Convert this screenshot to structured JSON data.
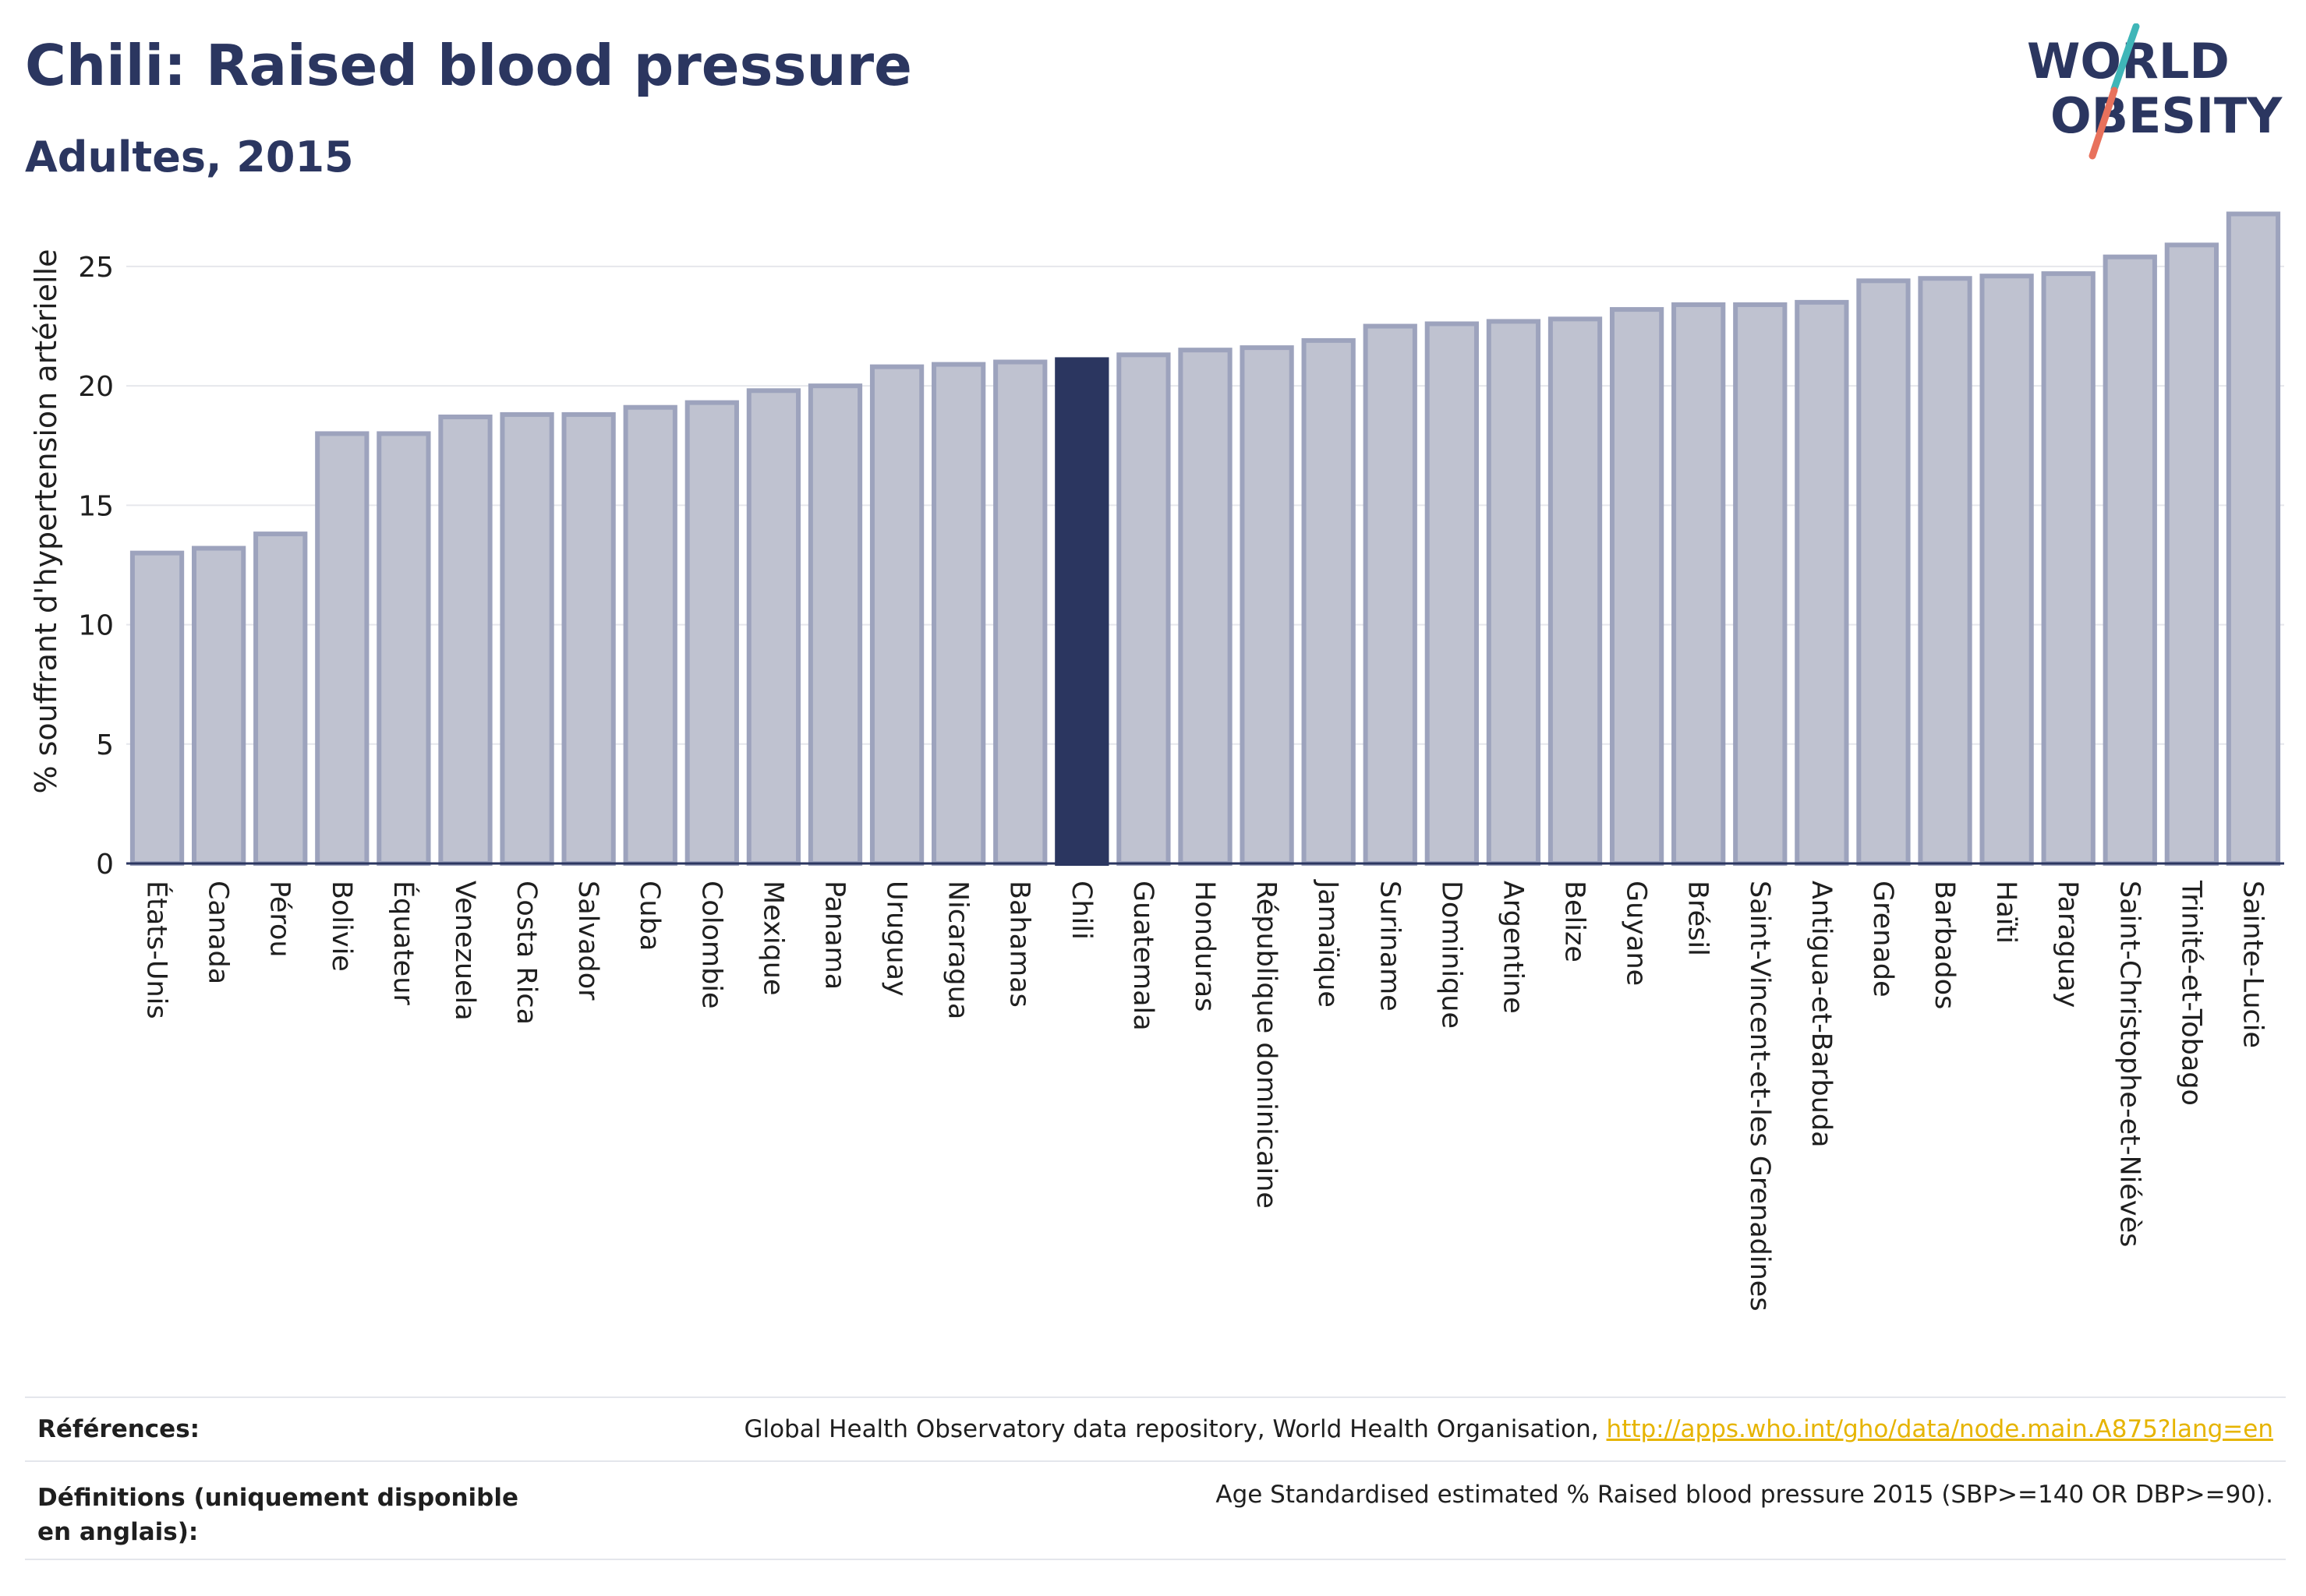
{
  "header": {
    "title": "Chili: Raised blood pressure",
    "subtitle": "Adultes, 2015"
  },
  "logo": {
    "line1": "WORLD",
    "line2": "OBESITY"
  },
  "colors": {
    "bar": "#bfc2d0",
    "bar_border": "#9da3bd",
    "highlight": "#2b3660",
    "text": "#2b3660",
    "link": "#e6b400"
  },
  "chart_data": {
    "type": "bar",
    "title": "Chili: Raised blood pressure",
    "subtitle": "Adultes, 2015",
    "xlabel": "",
    "ylabel": "% souffrant d'hypertension artérielle",
    "ylim": [
      0,
      28
    ],
    "yticks": [
      0,
      5,
      10,
      15,
      20,
      25
    ],
    "grid": true,
    "highlight_category": "Chili",
    "categories": [
      "États-Unis",
      "Canada",
      "Pérou",
      "Bolivie",
      "Équateur",
      "Venezuela",
      "Costa Rica",
      "Salvador",
      "Cuba",
      "Colombie",
      "Mexique",
      "Panama",
      "Uruguay",
      "Nicaragua",
      "Bahamas",
      "Chili",
      "Guatemala",
      "Honduras",
      "République dominicaine",
      "Jamaïque",
      "Suriname",
      "Dominique",
      "Argentine",
      "Belize",
      "Guyane",
      "Brésil",
      "Saint-Vincent-et-les Grenadines",
      "Antigua-et-Barbuda",
      "Grenade",
      "Barbados",
      "Haïti",
      "Paraguay",
      "Saint-Christophe-et-Niévès",
      "Trinité-et-Tobago",
      "Sainte-Lucie"
    ],
    "values": [
      13.0,
      13.2,
      13.8,
      18.0,
      18.0,
      18.7,
      18.8,
      18.8,
      19.1,
      19.3,
      19.8,
      20.0,
      20.8,
      20.9,
      21.0,
      21.1,
      21.3,
      21.5,
      21.6,
      21.9,
      22.5,
      22.6,
      22.7,
      22.8,
      23.2,
      23.4,
      23.4,
      23.5,
      24.4,
      24.5,
      24.6,
      24.7,
      25.4,
      25.9,
      27.2
    ]
  },
  "footer": {
    "references_label": "Références:",
    "references_text": "Global Health Observatory data repository, World Health Organisation, ",
    "references_link": "http://apps.who.int/gho/data/node.main.A875?lang=en",
    "definitions_label": "Définitions (uniquement disponible en anglais):",
    "definitions_text": "Age Standardised estimated % Raised blood pressure 2015 (SBP>=140 OR DBP>=90)."
  }
}
